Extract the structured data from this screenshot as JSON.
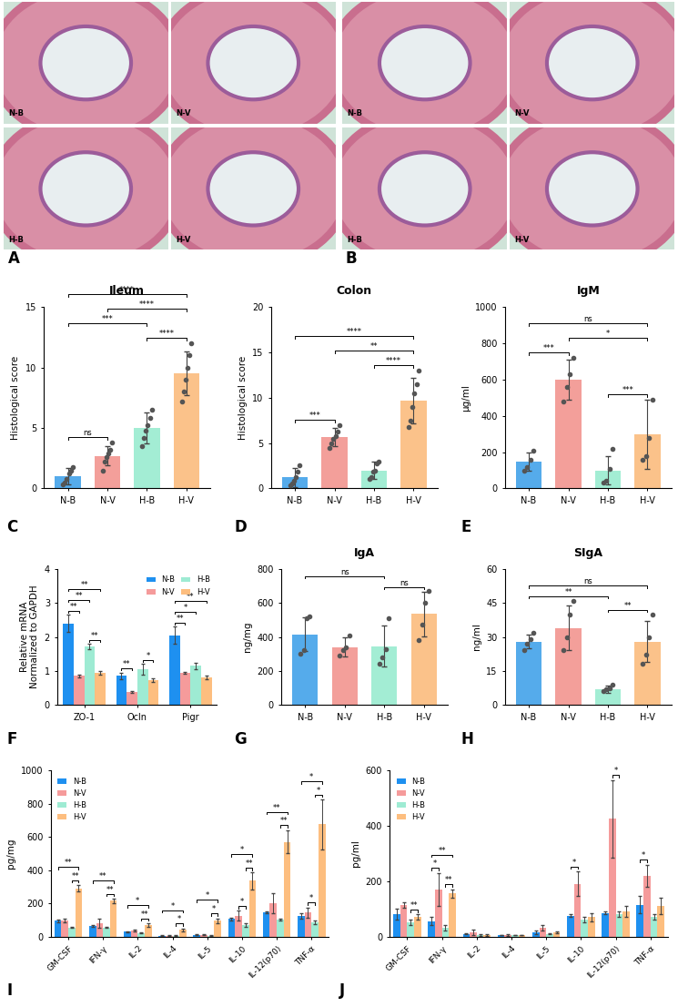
{
  "image_panels": [
    {
      "panel": "A",
      "images": [
        "N-B",
        "N-V",
        "H-B",
        "H-V"
      ]
    },
    {
      "panel": "B",
      "images": [
        "N-B",
        "N-V",
        "H-B",
        "H-V"
      ]
    }
  ],
  "chart_data": [
    {
      "panel": "C",
      "type": "bar",
      "title": "Ileum",
      "y_label": "Histological score",
      "categories": [
        "N-B",
        "N-V",
        "H-B",
        "H-V"
      ],
      "values": [
        1.0,
        2.7,
        5.0,
        9.5
      ],
      "errors": [
        0.7,
        0.8,
        1.3,
        1.8
      ],
      "points": [
        [
          0.3,
          0.5,
          0.8,
          1.2,
          1.5,
          1.8
        ],
        [
          1.5,
          2.2,
          2.6,
          2.9,
          3.2,
          3.8
        ],
        [
          3.5,
          4.2,
          4.8,
          5.2,
          5.8,
          6.5
        ],
        [
          7.2,
          8.0,
          9.0,
          10.0,
          11.0,
          12.0
        ]
      ],
      "colors": [
        "#55ABEB",
        "#F39F9A",
        "#A3EDD4",
        "#FBC28A"
      ],
      "ylim": [
        0,
        15
      ],
      "yticks": [
        0,
        5,
        10,
        15
      ],
      "annotations": [
        {
          "text": "ns",
          "between": [
            0,
            1
          ]
        },
        {
          "text": "***",
          "between": [
            0,
            2
          ]
        },
        {
          "text": "****",
          "between": [
            2,
            3
          ]
        },
        {
          "text": "****",
          "between": [
            1,
            3
          ]
        },
        {
          "text": "****",
          "between": [
            0,
            3
          ]
        }
      ]
    },
    {
      "panel": "D",
      "type": "bar",
      "title": "Colon",
      "y_label": "Histological score",
      "categories": [
        "N-B",
        "N-V",
        "H-B",
        "H-V"
      ],
      "values": [
        1.2,
        5.7,
        2.0,
        9.7
      ],
      "errors": [
        1.1,
        1.0,
        1.0,
        2.5
      ],
      "points": [
        [
          0.3,
          0.5,
          0.8,
          1.2,
          1.8,
          2.6
        ],
        [
          4.5,
          5.0,
          5.5,
          5.8,
          6.3,
          7.0
        ],
        [
          1.0,
          1.2,
          1.8,
          2.0,
          2.8,
          3.0
        ],
        [
          6.8,
          7.5,
          9.0,
          10.5,
          11.5,
          13.0
        ]
      ],
      "colors": [
        "#55ABEB",
        "#F39F9A",
        "#A3EDD4",
        "#FBC28A"
      ],
      "ylim": [
        0,
        20
      ],
      "yticks": [
        0,
        5,
        10,
        15,
        20
      ],
      "annotations": [
        {
          "text": "***",
          "between": [
            0,
            1
          ]
        },
        {
          "text": "****",
          "between": [
            2,
            3
          ]
        },
        {
          "text": "**",
          "between": [
            1,
            3
          ]
        },
        {
          "text": "****",
          "between": [
            0,
            3
          ]
        }
      ]
    },
    {
      "panel": "E",
      "type": "bar",
      "title": "IgM",
      "y_label": "μg/ml",
      "categories": [
        "N-B",
        "N-V",
        "H-B",
        "H-V"
      ],
      "values": [
        150,
        600,
        100,
        300
      ],
      "errors": [
        50,
        110,
        80,
        190
      ],
      "points": [
        [
          100,
          120,
          160,
          210
        ],
        [
          480,
          560,
          630,
          720
        ],
        [
          30,
          40,
          110,
          220
        ],
        [
          160,
          180,
          280,
          490
        ]
      ],
      "colors": [
        "#55ABEB",
        "#F39F9A",
        "#A3EDD4",
        "#FBC28A"
      ],
      "ylim": [
        0,
        1000
      ],
      "yticks": [
        0,
        200,
        400,
        600,
        800,
        1000
      ],
      "annotations": [
        {
          "text": "***",
          "between": [
            0,
            1
          ]
        },
        {
          "text": "***",
          "between": [
            2,
            3
          ]
        },
        {
          "text": "*",
          "between": [
            1,
            3
          ]
        },
        {
          "text": "ns",
          "between": [
            0,
            3
          ]
        }
      ]
    },
    {
      "panel": "F",
      "type": "bar",
      "y_label": "Relative mRNA\nNormalized to GAPDH",
      "categories": [
        "ZO-1",
        "Ocln",
        "Pigr"
      ],
      "series": [
        {
          "name": "N-B",
          "color": "#1E90F0",
          "values": [
            2.4,
            0.85,
            2.05
          ],
          "errors": [
            0.25,
            0.1,
            0.25
          ]
        },
        {
          "name": "N-V",
          "color": "#F59B9B",
          "values": [
            0.85,
            0.38,
            0.95
          ],
          "errors": [
            0.03,
            0.02,
            0.03
          ]
        },
        {
          "name": "H-B",
          "color": "#9EEBD3",
          "values": [
            1.72,
            1.05,
            1.15
          ],
          "errors": [
            0.08,
            0.15,
            0.1
          ]
        },
        {
          "name": "H-V",
          "color": "#FDBE7F",
          "values": [
            0.95,
            0.72,
            0.8
          ],
          "errors": [
            0.05,
            0.05,
            0.05
          ]
        }
      ],
      "legend": "upper right",
      "ylim": [
        0,
        4
      ],
      "yticks": [
        0,
        1,
        2,
        3,
        4
      ],
      "annotations": [
        {
          "text": "**",
          "category": 0,
          "between": [
            0,
            1
          ]
        },
        {
          "text": "**",
          "category": 0,
          "between": [
            0,
            2
          ]
        },
        {
          "text": "**",
          "category": 0,
          "between": [
            0,
            3
          ]
        },
        {
          "text": "**",
          "category": 0,
          "between": [
            2,
            3
          ]
        },
        {
          "text": "**",
          "category": 1,
          "between": [
            0,
            1
          ]
        },
        {
          "text": "*",
          "category": 1,
          "between": [
            2,
            3
          ]
        },
        {
          "text": "**",
          "category": 2,
          "between": [
            0,
            1
          ]
        },
        {
          "text": "*",
          "category": 2,
          "between": [
            0,
            2
          ]
        },
        {
          "text": "**",
          "category": 2,
          "between": [
            0,
            3
          ]
        }
      ]
    },
    {
      "panel": "G",
      "type": "bar",
      "title": "IgA",
      "y_label": "ng/mg",
      "categories": [
        "N-B",
        "N-V",
        "H-B",
        "H-V"
      ],
      "values": [
        415,
        340,
        345,
        535
      ],
      "errors": [
        100,
        55,
        120,
        130
      ],
      "points": [
        [
          300,
          320,
          510,
          520
        ],
        [
          290,
          320,
          340,
          410
        ],
        [
          240,
          280,
          330,
          510
        ],
        [
          380,
          470,
          600,
          670
        ]
      ],
      "colors": [
        "#55ABEB",
        "#F39F9A",
        "#A3EDD4",
        "#FBC28A"
      ],
      "ylim": [
        0,
        800
      ],
      "yticks": [
        0,
        200,
        400,
        600,
        800
      ],
      "annotations": [
        {
          "text": "ns",
          "between": [
            0,
            2
          ]
        },
        {
          "text": "ns",
          "between": [
            2,
            3
          ]
        }
      ]
    },
    {
      "panel": "H",
      "type": "bar",
      "title": "SIgA",
      "y_label": "ng/ml",
      "categories": [
        "N-B",
        "N-V",
        "H-B",
        "H-V"
      ],
      "values": [
        28,
        34,
        7,
        28
      ],
      "errors": [
        3,
        10,
        1.5,
        9
      ],
      "points": [
        [
          24,
          27,
          29,
          32
        ],
        [
          24,
          30,
          40,
          46
        ],
        [
          6,
          7,
          7.5,
          9
        ],
        [
          18,
          22,
          30,
          40
        ]
      ],
      "colors": [
        "#55ABEB",
        "#F39F9A",
        "#A3EDD4",
        "#FBC28A"
      ],
      "ylim": [
        0,
        60
      ],
      "yticks": [
        0,
        15,
        30,
        45,
        60
      ],
      "annotations": [
        {
          "text": "**",
          "between": [
            0,
            2
          ]
        },
        {
          "text": "**",
          "between": [
            2,
            3
          ]
        },
        {
          "text": "ns",
          "between": [
            0,
            3
          ]
        }
      ]
    },
    {
      "panel": "I",
      "type": "bar",
      "y_label": "pg/mg",
      "categories": [
        "GM-CSF",
        "IFN-γ",
        "IL-2",
        "IL-4",
        "IL-5",
        "IL-10",
        "IL-12(p70)",
        "TNF-α"
      ],
      "series": [
        {
          "name": "N-B",
          "color": "#1E90F0",
          "values": [
            95,
            65,
            30,
            5,
            10,
            105,
            145,
            125
          ],
          "errors": [
            8,
            5,
            3,
            1,
            2,
            8,
            5,
            15
          ]
        },
        {
          "name": "N-V",
          "color": "#F59B9B",
          "values": [
            95,
            80,
            35,
            5,
            10,
            125,
            200,
            145
          ],
          "errors": [
            10,
            30,
            5,
            1,
            3,
            30,
            60,
            30
          ]
        },
        {
          "name": "H-B",
          "color": "#9EEBD3",
          "values": [
            55,
            55,
            20,
            5,
            5,
            70,
            100,
            85
          ],
          "errors": [
            5,
            5,
            3,
            1,
            1,
            10,
            5,
            10
          ]
        },
        {
          "name": "H-V",
          "color": "#FDBE7F",
          "values": [
            290,
            215,
            70,
            40,
            95,
            335,
            570,
            675
          ],
          "errors": [
            20,
            12,
            10,
            8,
            15,
            50,
            70,
            150
          ]
        }
      ],
      "legend": "upper left",
      "ylim": [
        0,
        1000
      ],
      "yticks": [
        0,
        200,
        400,
        600,
        800,
        1000
      ],
      "annotations": [
        {
          "text": "**",
          "category": 0,
          "between": [
            2,
            3
          ]
        },
        {
          "text": "**",
          "category": 0,
          "between": [
            0,
            3
          ]
        },
        {
          "text": "**",
          "category": 1,
          "between": [
            2,
            3
          ]
        },
        {
          "text": "**",
          "category": 1,
          "between": [
            0,
            3
          ]
        },
        {
          "text": "**",
          "category": 2,
          "between": [
            2,
            3
          ]
        },
        {
          "text": "*",
          "category": 2,
          "between": [
            0,
            3
          ]
        },
        {
          "text": "*",
          "category": 3,
          "between": [
            2,
            3
          ]
        },
        {
          "text": "*",
          "category": 3,
          "between": [
            0,
            3
          ]
        },
        {
          "text": "*",
          "category": 4,
          "between": [
            2,
            3
          ]
        },
        {
          "text": "*",
          "category": 4,
          "between": [
            0,
            3
          ]
        },
        {
          "text": "*",
          "category": 5,
          "between": [
            1,
            2
          ]
        },
        {
          "text": "**",
          "category": 5,
          "between": [
            2,
            3
          ]
        },
        {
          "text": "*",
          "category": 5,
          "between": [
            0,
            3
          ]
        },
        {
          "text": "**",
          "category": 6,
          "between": [
            2,
            3
          ]
        },
        {
          "text": "**",
          "category": 6,
          "between": [
            0,
            3
          ]
        },
        {
          "text": "*",
          "category": 7,
          "between": [
            1,
            2
          ]
        },
        {
          "text": "*",
          "category": 7,
          "between": [
            2,
            3
          ]
        },
        {
          "text": "*",
          "category": 7,
          "between": [
            0,
            3
          ]
        }
      ]
    },
    {
      "panel": "J",
      "type": "bar",
      "y_label": "pg/ml",
      "categories": [
        "GM-CSF",
        "IFN-γ",
        "IL-2",
        "IL-4",
        "IL-5",
        "IL-10",
        "IL-12(p70)",
        "TNF-α"
      ],
      "series": [
        {
          "name": "N-B",
          "color": "#1E90F0",
          "values": [
            80,
            55,
            10,
            5,
            15,
            75,
            85,
            115
          ],
          "errors": [
            20,
            15,
            3,
            1,
            5,
            5,
            5,
            30
          ]
        },
        {
          "name": "N-V",
          "color": "#F59B9B",
          "values": [
            115,
            170,
            15,
            5,
            30,
            190,
            425,
            220
          ],
          "errors": [
            10,
            60,
            10,
            2,
            10,
            45,
            140,
            40
          ]
        },
        {
          "name": "H-B",
          "color": "#9EEBD3",
          "values": [
            50,
            30,
            5,
            5,
            10,
            60,
            80,
            70
          ],
          "errors": [
            10,
            10,
            2,
            1,
            3,
            10,
            10,
            10
          ]
        },
        {
          "name": "H-V",
          "color": "#FDBE7F",
          "values": [
            70,
            155,
            5,
            5,
            15,
            70,
            90,
            110
          ],
          "errors": [
            10,
            15,
            2,
            1,
            3,
            15,
            20,
            30
          ]
        }
      ],
      "legend": "upper left",
      "ylim": [
        0,
        600
      ],
      "yticks": [
        0,
        200,
        400,
        600
      ],
      "annotations": [
        {
          "text": "**",
          "category": 0,
          "between": [
            2,
            3
          ]
        },
        {
          "text": "*",
          "category": 1,
          "between": [
            0,
            1
          ]
        },
        {
          "text": "**",
          "category": 1,
          "between": [
            2,
            3
          ]
        },
        {
          "text": "**",
          "category": 1,
          "between": [
            0,
            3
          ]
        },
        {
          "text": "*",
          "category": 5,
          "between": [
            0,
            1
          ]
        },
        {
          "text": "*",
          "category": 6,
          "between": [
            1,
            2
          ]
        },
        {
          "text": "*",
          "category": 7,
          "between": [
            0,
            1
          ]
        }
      ]
    }
  ]
}
